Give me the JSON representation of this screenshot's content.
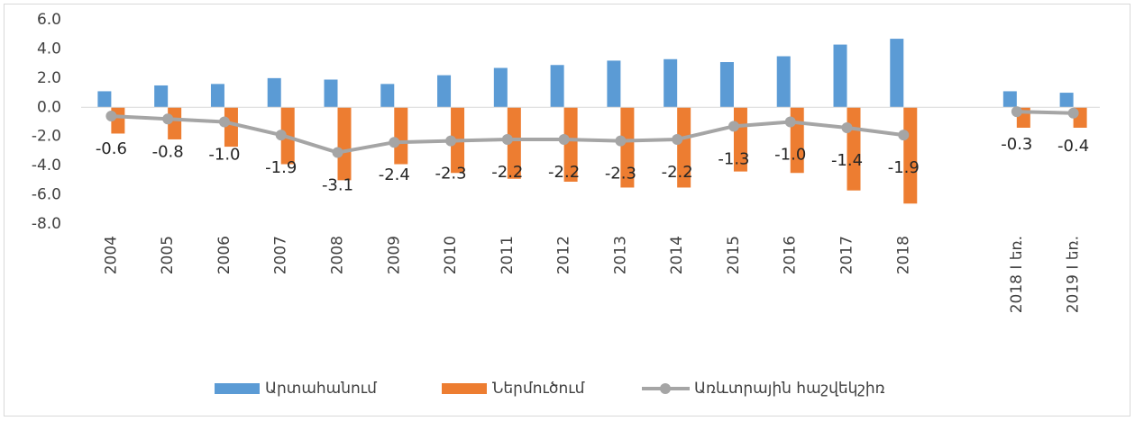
{
  "chart_data": {
    "type": "bar_line",
    "categories": [
      "2004",
      "2005",
      "2006",
      "2007",
      "2008",
      "2009",
      "2010",
      "2011",
      "2012",
      "2013",
      "2014",
      "2015",
      "2016",
      "2017",
      "2018",
      null,
      "2018 I եռ.",
      "2019 I եռ."
    ],
    "series": [
      {
        "name": "Արտահանում",
        "type": "bar",
        "color": "#5b9bd5",
        "values": [
          1.1,
          1.5,
          1.6,
          2.0,
          1.9,
          1.6,
          2.2,
          2.7,
          2.9,
          3.2,
          3.3,
          3.1,
          3.5,
          4.3,
          4.7,
          null,
          1.1,
          1.0
        ]
      },
      {
        "name": "Ներմուծում",
        "type": "bar",
        "color": "#ed7d31",
        "values": [
          -1.8,
          -2.2,
          -2.7,
          -3.9,
          -5.0,
          -3.9,
          -4.5,
          -4.9,
          -5.1,
          -5.5,
          -5.5,
          -4.4,
          -4.5,
          -5.7,
          -6.6,
          null,
          -1.4,
          -1.4
        ]
      },
      {
        "name": "Առևտրային հաշվեկշիռ",
        "type": "line",
        "color": "#a5a5a5",
        "values": [
          -0.6,
          -0.8,
          -1.0,
          -1.9,
          -3.1,
          -2.4,
          -2.3,
          -2.2,
          -2.2,
          -2.3,
          -2.2,
          -1.3,
          -1.0,
          -1.4,
          -1.9,
          null,
          -0.3,
          -0.4
        ],
        "value_labels": [
          "-0.6",
          "-0.8",
          "-1.0",
          "-1.9",
          "-3.1",
          "-2.4",
          "-2.3",
          "-2.2",
          "-2.2",
          "-2.3",
          "-2.2",
          "-1.3",
          "-1.0",
          "-1.4",
          "-1.9",
          null,
          "-0.3",
          "-0.4"
        ]
      }
    ],
    "ylim": [
      -8,
      6
    ],
    "yticks": [
      {
        "value": -8,
        "label": "-8.0"
      },
      {
        "value": -6,
        "label": "-6.0"
      },
      {
        "value": -4,
        "label": "-4.0"
      },
      {
        "value": -2,
        "label": "-2.0"
      },
      {
        "value": 0,
        "label": "0.0"
      },
      {
        "value": 2,
        "label": "2.0"
      },
      {
        "value": 4,
        "label": "4.0"
      },
      {
        "value": 6,
        "label": "6.0"
      }
    ],
    "grid": false,
    "legend": "bottom"
  }
}
